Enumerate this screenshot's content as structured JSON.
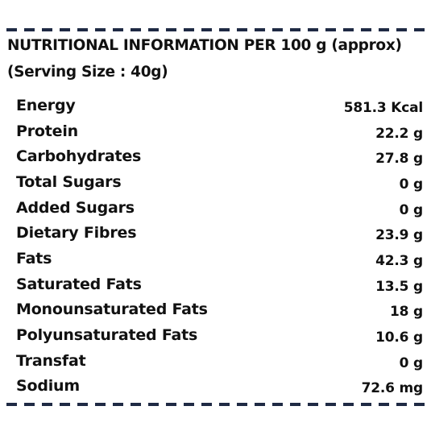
{
  "title": "NUTRITIONAL INFORMATION PER 100 g (approx)",
  "serving": "(Serving Size : 40g)",
  "colors": {
    "text": "#111111",
    "dash": "#1f2a44",
    "background": "#ffffff"
  },
  "rows": [
    {
      "label": "Energy",
      "value": "581.3 Kcal"
    },
    {
      "label": "Protein",
      "value": "22.2 g"
    },
    {
      "label": "Carbohydrates",
      "value": "27.8 g"
    },
    {
      "label": "Total Sugars",
      "value": "0 g"
    },
    {
      "label": "Added Sugars",
      "value": "0 g"
    },
    {
      "label": "Dietary Fibres",
      "value": "23.9 g"
    },
    {
      "label": "Fats",
      "value": "42.3 g"
    },
    {
      "label": "Saturated Fats",
      "value": "13.5 g"
    },
    {
      "label": "Monounsaturated Fats",
      "value": "18 g"
    },
    {
      "label": "Polyunsaturated Fats",
      "value": "10.6 g"
    },
    {
      "label": "Transfat",
      "value": "0 g"
    },
    {
      "label": "Sodium",
      "value": "72.6 mg"
    }
  ]
}
